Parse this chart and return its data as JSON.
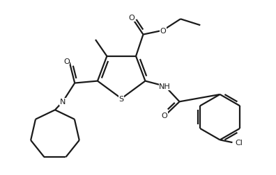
{
  "bg_color": "#ffffff",
  "line_color": "#1a1a1a",
  "line_width": 1.6,
  "figsize": [
    3.96,
    2.53
  ],
  "dpi": 100,
  "font_size": 8.0,
  "xlim": [
    0.0,
    5.2
  ],
  "ylim": [
    0.0,
    3.4
  ]
}
